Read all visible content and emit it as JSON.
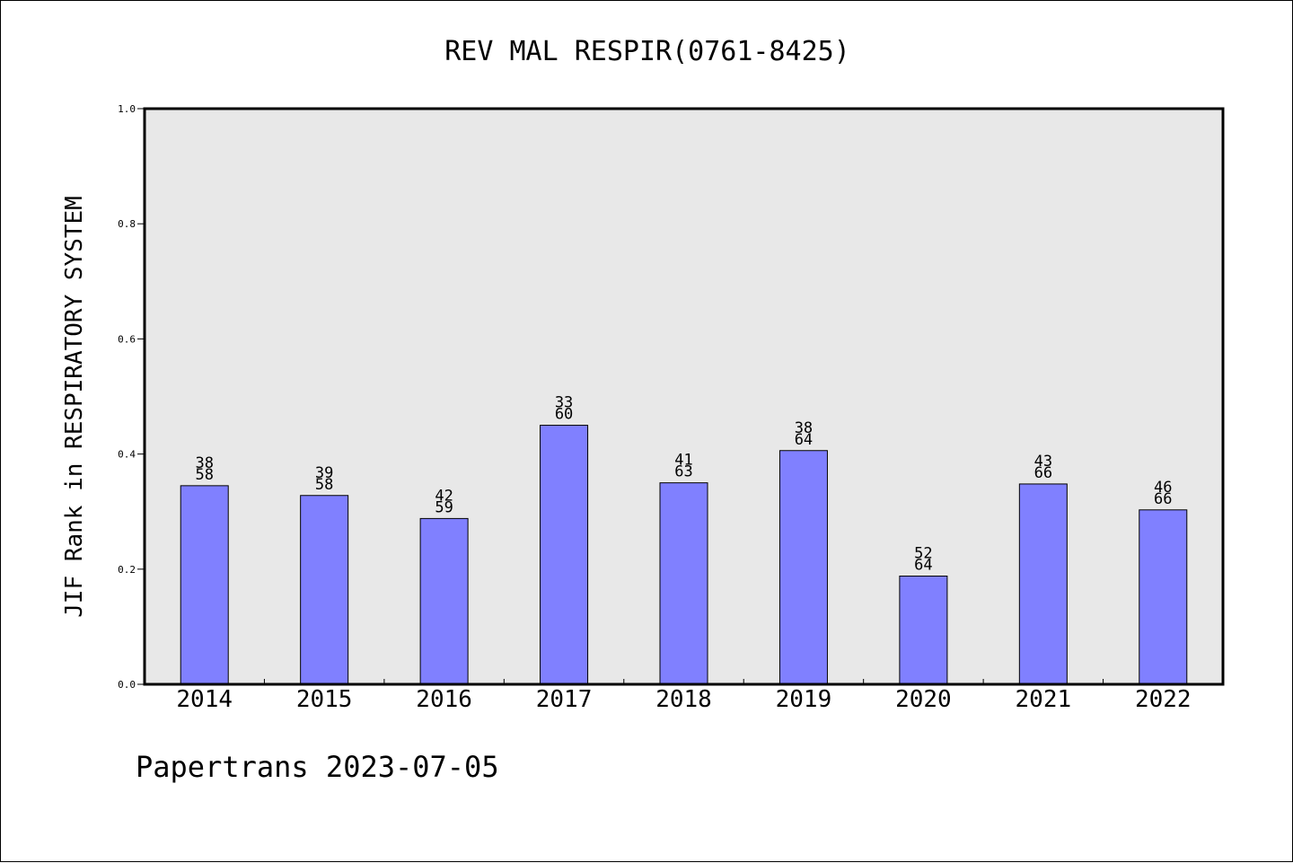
{
  "chart_data": {
    "type": "bar",
    "title": "REV MAL RESPIR(0761-8425)",
    "xlabel": "",
    "ylabel": "JIF Rank in RESPIRATORY SYSTEM",
    "ylim": [
      0.0,
      1.0
    ],
    "yticks": [
      "0.0",
      "0.2",
      "0.4",
      "0.6",
      "0.8",
      "1.0"
    ],
    "categories": [
      "2014",
      "2015",
      "2016",
      "2017",
      "2018",
      "2019",
      "2020",
      "2021",
      "2022"
    ],
    "values": [
      0.345,
      0.328,
      0.288,
      0.45,
      0.35,
      0.406,
      0.188,
      0.348,
      0.303
    ],
    "rank_labels": [
      "38",
      "39",
      "42",
      "33",
      "41",
      "38",
      "52",
      "43",
      "46"
    ],
    "total_labels": [
      "58",
      "58",
      "59",
      "60",
      "63",
      "64",
      "64",
      "66",
      "66"
    ],
    "grid": false,
    "legend": "none",
    "colors": {
      "bar": "#8080ff",
      "plot_background": "#e8e8e8",
      "page_background": "#ffffff"
    }
  },
  "footer": "Papertrans 2023-07-05"
}
